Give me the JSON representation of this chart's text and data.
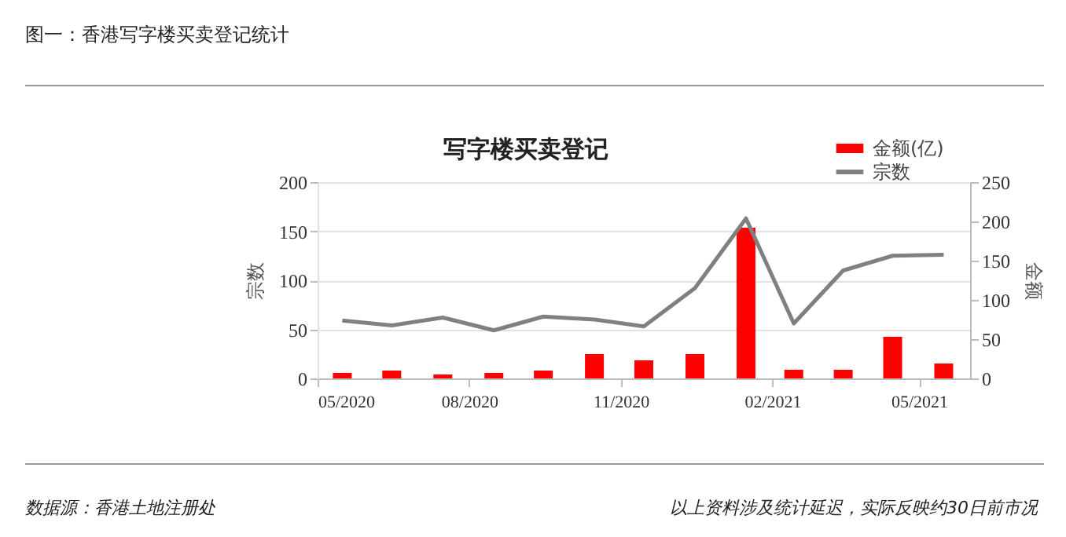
{
  "chart_data": {
    "type": "bar",
    "title": "图一：香港写字楼买卖登记统计",
    "subtitle": "写字楼买卖登记",
    "ylabel": "宗数",
    "y2label": "金额",
    "x": [
      "2020-05-16",
      "2020-06-15",
      "2020-07-16",
      "2020-08-16",
      "2020-09-15",
      "2020-10-16",
      "2020-11-15",
      "2020-12-16",
      "2021-01-16",
      "2021-02-14",
      "2021-03-16",
      "2021-04-15",
      "2021-05-16"
    ],
    "series": [
      {
        "name": "金额(亿)",
        "axis": "y2",
        "color": "#ff0000",
        "values": [
          7,
          10,
          5,
          7,
          10,
          31,
          23,
          31,
          192,
          11,
          11,
          53,
          19
        ]
      },
      {
        "name": "宗数",
        "type": "line",
        "color": "#808080",
        "values": [
          59,
          54,
          62,
          49,
          63,
          60,
          53,
          92,
          163,
          56,
          110,
          125,
          126
        ]
      }
    ],
    "xlim": [
      "2020-05",
      "2021-06"
    ],
    "xticks": [
      {
        "value": "2020-05",
        "label": "05/2020"
      },
      {
        "value": "2020-08",
        "label": "08/2020"
      },
      {
        "value": "2020-11",
        "label": "11/2020"
      },
      {
        "value": "2021-02",
        "label": "02/2021"
      },
      {
        "value": "2021-05",
        "label": "05/2021"
      }
    ],
    "ylim": [
      0,
      200
    ],
    "yticks": [
      0,
      50,
      100,
      150,
      200
    ],
    "y2lim": [
      0,
      250
    ],
    "y2ticks": [
      0,
      50,
      100,
      150,
      200,
      250
    ],
    "grid": "y",
    "legend": "top right",
    "marker": "none",
    "line_style": "solid",
    "annotations": [
      "数据源：香港土地注册处",
      "以上资料涉及统计延迟，实际反映约30日前市况"
    ]
  }
}
